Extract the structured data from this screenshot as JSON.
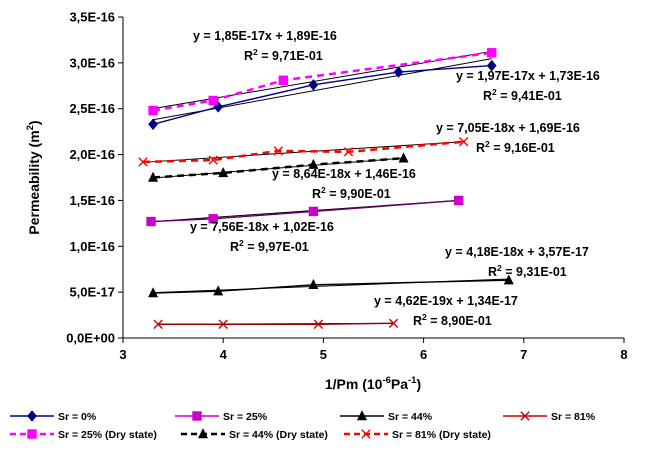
{
  "chart_data": {
    "type": "scatter",
    "title": "",
    "xlabel": {
      "main": "1/Pm (10",
      "sup1": "-6",
      "mid": "Pa",
      "sup2": "-1",
      "end": ")"
    },
    "ylabel": {
      "main": "Permeability (m",
      "sup": "2",
      "end": ")"
    },
    "xlim": [
      3,
      8
    ],
    "ylim": [
      0,
      3.5e-16
    ],
    "x_ticks": [
      "3",
      "4",
      "5",
      "6",
      "7",
      "8"
    ],
    "y_ticks": [
      "0,0E+00",
      "5,0E-17",
      "1,0E-16",
      "1,5E-16",
      "2,0E-16",
      "2,5E-16",
      "3,0E-16",
      "3,5E-16"
    ],
    "grid": false,
    "legend_position": "bottom",
    "series": [
      {
        "name": "Sr = 0%",
        "color": "#000080",
        "marker": "diamond",
        "dash": false,
        "x": [
          3.3,
          3.95,
          4.9,
          5.75,
          6.68
        ],
        "y": [
          2.33e-16,
          2.52e-16,
          2.76e-16,
          2.9e-16,
          2.97e-16
        ]
      },
      {
        "name": "Sr = 25%",
        "color": "#cc00cc",
        "line_color": "#660066",
        "marker": "square",
        "dash": false,
        "x": [
          3.28,
          3.9,
          4.9,
          6.35
        ],
        "y": [
          1.27e-16,
          1.3e-16,
          1.38e-16,
          1.5e-16
        ]
      },
      {
        "name": "Sr = 44%",
        "color": "#000000",
        "marker": "triangle",
        "dash": false,
        "x": [
          3.3,
          3.95,
          4.9,
          6.85
        ],
        "y": [
          4.9e-17,
          5.1e-17,
          5.8e-17,
          6.3e-17
        ]
      },
      {
        "name": "Sr = 81%",
        "color": "#cc0000",
        "line_color": "#990000",
        "marker": "x",
        "dash": false,
        "x": [
          3.35,
          4.0,
          4.95,
          5.7
        ],
        "y": [
          1.5e-17,
          1.5e-17,
          1.5e-17,
          1.6e-17
        ]
      },
      {
        "name": "Sr = 25% (Dry state)",
        "color": "#ff00ff",
        "marker": "square",
        "dash": true,
        "x": [
          3.3,
          3.9,
          4.6,
          6.68
        ],
        "y": [
          2.48e-16,
          2.59e-16,
          2.81e-16,
          3.11e-16
        ]
      },
      {
        "name": "Sr = 44% (Dry state)",
        "color": "#000000",
        "marker": "triangle",
        "dash": true,
        "x": [
          3.3,
          4.0,
          4.9,
          5.8
        ],
        "y": [
          1.75e-16,
          1.8e-16,
          1.89e-16,
          1.96e-16
        ]
      },
      {
        "name": "Sr = 81% (Dry state)",
        "color": "#ff0000",
        "marker": "x",
        "dash": true,
        "x": [
          3.2,
          3.9,
          4.55,
          5.25,
          6.4
        ],
        "y": [
          1.92e-16,
          1.94e-16,
          2.04e-16,
          2.03e-16,
          2.14e-16
        ]
      }
    ],
    "trendlines": [
      {
        "x1": 3.3,
        "x2": 6.68,
        "slope": 1.85e-17,
        "intercept": 1.89e-16
      },
      {
        "x1": 3.3,
        "x2": 6.68,
        "slope": 1.97e-17,
        "intercept": 1.73e-16
      },
      {
        "x1": 3.2,
        "x2": 6.4,
        "slope": 7.05e-18,
        "intercept": 1.69e-16
      },
      {
        "x1": 3.3,
        "x2": 5.8,
        "slope": 8.64e-18,
        "intercept": 1.46e-16
      },
      {
        "x1": 3.28,
        "x2": 6.35,
        "slope": 7.56e-18,
        "intercept": 1.02e-16
      },
      {
        "x1": 3.3,
        "x2": 6.85,
        "slope": 4.18e-18,
        "intercept": 3.57e-17
      },
      {
        "x1": 3.35,
        "x2": 5.7,
        "slope": 4.62e-19,
        "intercept": 1.34e-17
      }
    ],
    "annotations": [
      {
        "eq": "y = 1,85E-17x + 1,89E-16",
        "r2": "= 9,71E-01"
      },
      {
        "eq": "y = 1,97E-17x + 1,73E-16",
        "r2": "= 9,41E-01"
      },
      {
        "eq": "y = 7,05E-18x + 1,69E-16",
        "r2": "= 9,16E-01"
      },
      {
        "eq": "y = 8,64E-18x + 1,46E-16",
        "r2": "= 9,90E-01"
      },
      {
        "eq": "y = 7,56E-18x + 1,02E-16",
        "r2": "= 9,97E-01"
      },
      {
        "eq": "y = 4,18E-18x + 3,57E-17",
        "r2": "= 9,31E-01"
      },
      {
        "eq": "y = 4,62E-19x + 1,34E-17",
        "r2": "= 8,90E-01"
      }
    ]
  }
}
